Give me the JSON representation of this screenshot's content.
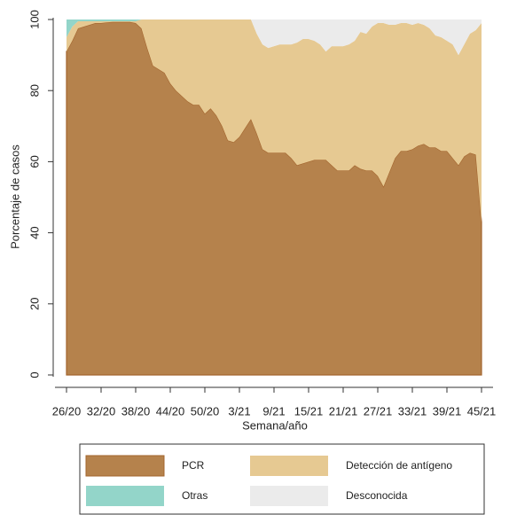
{
  "chart_data": {
    "type": "stacked-area",
    "x_label": "Semana/año",
    "y_label": "Porcentaje de casos",
    "categories": [
      "26/20",
      null,
      null,
      null,
      null,
      null,
      "32/20",
      null,
      null,
      null,
      null,
      null,
      "38/20",
      null,
      null,
      null,
      null,
      null,
      "44/20",
      null,
      null,
      null,
      null,
      null,
      "50/20",
      null,
      null,
      null,
      null,
      null,
      "3/21",
      null,
      null,
      null,
      null,
      null,
      "9/21",
      null,
      null,
      null,
      null,
      null,
      "15/21",
      null,
      null,
      null,
      null,
      null,
      "21/21",
      null,
      null,
      null,
      null,
      null,
      "27/21",
      null,
      null,
      null,
      null,
      null,
      "33/21",
      null,
      null,
      null,
      null,
      null,
      "39/21",
      null,
      null,
      null,
      null,
      null,
      "45/21"
    ],
    "series": [
      {
        "name": "PCR",
        "color": "#b5824c",
        "values": [
          91,
          94,
          97.5,
          98,
          98.5,
          99,
          99,
          99.2,
          99.3,
          99.3,
          99.3,
          99.3,
          99,
          97.5,
          92,
          87,
          86,
          85,
          82,
          80,
          78.5,
          77,
          76,
          76,
          73.5,
          75,
          73,
          70,
          66,
          65.5,
          67,
          69.5,
          72,
          68,
          63.5,
          62.5,
          62.5,
          62.5,
          62.5,
          61,
          59,
          59.5,
          60,
          60.5,
          60.5,
          60.5,
          59,
          57.5,
          57.5,
          57.5,
          59,
          58,
          57.5,
          57.5,
          56,
          53,
          57,
          61,
          63,
          63,
          63.5,
          64.5,
          65,
          64,
          64,
          63,
          63,
          61,
          59,
          61.5,
          62.5,
          62,
          43
        ]
      },
      {
        "name": "Detección de antígeno",
        "color": "#e6c992",
        "values": [
          4,
          4,
          2,
          1.5,
          1,
          0.5,
          0.5,
          0.3,
          0.2,
          0.2,
          0.2,
          0.2,
          0.5,
          2.5,
          8,
          13,
          14,
          15,
          18,
          20,
          21.5,
          23,
          24,
          24,
          26.5,
          25,
          27,
          30,
          34,
          34.5,
          33,
          30.5,
          28,
          28,
          29.5,
          29.5,
          30,
          30.5,
          30.5,
          32,
          34.5,
          35,
          34.5,
          33.5,
          32.5,
          30.5,
          33.5,
          35,
          35,
          35.5,
          35,
          38.5,
          38.5,
          40.5,
          43,
          46,
          41.5,
          37.5,
          36,
          36,
          35,
          34.5,
          33.5,
          33.5,
          31.5,
          32,
          31,
          32,
          31,
          31.5,
          33.5,
          35,
          56
        ]
      },
      {
        "name": "Otras",
        "color": "#93d5c9",
        "values": [
          5,
          2,
          0.5,
          0.5,
          0.5,
          0.5,
          0.5,
          0.5,
          0.5,
          0.5,
          0.5,
          0.5,
          0.5,
          0,
          0,
          0,
          0,
          0,
          0,
          0,
          0,
          0,
          0,
          0,
          0,
          0,
          0,
          0,
          0,
          0,
          0,
          0,
          0,
          0,
          0,
          0,
          0,
          0,
          0,
          0,
          0,
          0,
          0,
          0,
          0,
          0,
          0,
          0,
          0,
          0,
          0,
          0,
          0,
          0,
          0,
          0,
          0,
          0,
          0,
          0,
          0,
          0,
          0,
          0,
          0,
          0,
          0,
          0,
          0,
          0,
          0,
          0,
          0
        ]
      },
      {
        "name": "Desconocida",
        "color": "#ebebeb",
        "values": [
          0,
          0,
          0,
          0,
          0,
          0,
          0,
          0,
          0,
          0,
          0,
          0,
          0,
          0,
          0,
          0,
          0,
          0,
          0,
          0,
          0,
          0,
          0,
          0,
          0,
          0,
          0,
          0,
          0,
          0,
          0,
          0,
          0,
          4,
          7,
          8,
          7.5,
          7,
          7,
          7,
          6.5,
          5.5,
          5.5,
          6,
          7,
          9,
          7.5,
          7.5,
          7.5,
          7,
          6,
          3.5,
          4,
          2,
          1,
          1,
          1.5,
          1.5,
          1,
          1,
          1.5,
          1,
          1.5,
          2.5,
          4.5,
          5,
          6,
          7,
          10,
          7,
          4,
          3,
          1
        ]
      }
    ],
    "ylim": [
      0,
      100
    ],
    "yticks": [
      0,
      20,
      40,
      60,
      80,
      100
    ]
  }
}
